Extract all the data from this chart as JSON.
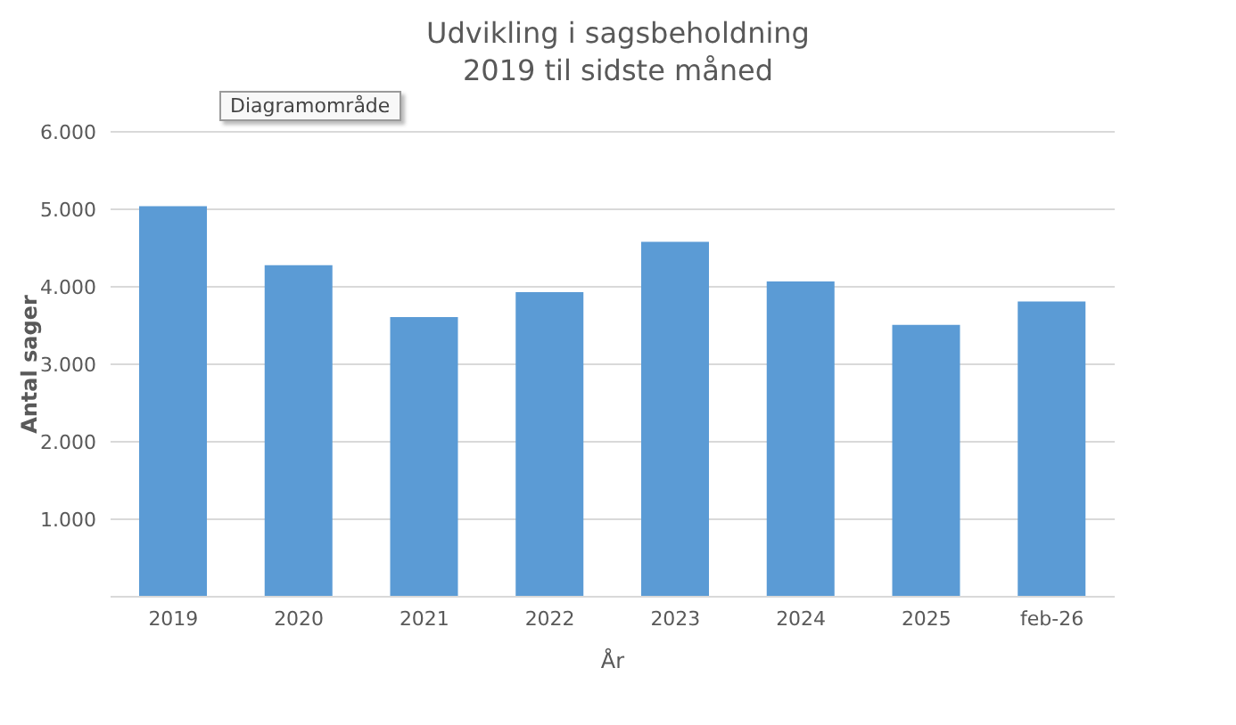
{
  "chart_data": {
    "type": "bar",
    "title": "Udvikling i sagsbeholdning\n2019 til sidste måned",
    "xlabel": "År",
    "ylabel": "Antal sager",
    "categories": [
      "2019",
      "2020",
      "2021",
      "2022",
      "2023",
      "2024",
      "2025",
      "feb-26"
    ],
    "values": [
      5040,
      4280,
      3610,
      3930,
      4580,
      4070,
      3510,
      3810
    ],
    "color": "#5b9bd5",
    "ylim": [
      0,
      6000
    ],
    "yticks": [
      {
        "value": 0,
        "label": null
      },
      {
        "value": 1000,
        "label": "1.000"
      },
      {
        "value": 2000,
        "label": "2.000"
      },
      {
        "value": 3000,
        "label": "3.000"
      },
      {
        "value": 4000,
        "label": "4.000"
      },
      {
        "value": 5000,
        "label": "5.000"
      },
      {
        "value": 6000,
        "label": "6.000"
      }
    ],
    "grid": "y",
    "legend": false,
    "annotations": [
      "Diagramområde"
    ]
  }
}
